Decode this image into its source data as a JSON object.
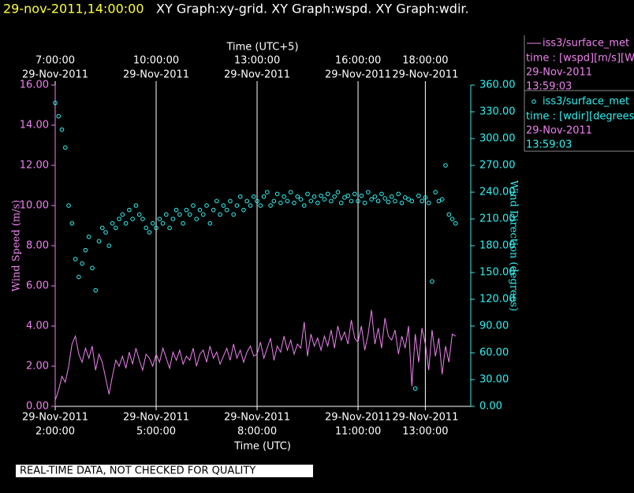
{
  "header": {
    "timestamp": "29-nov-2011,14:00:00",
    "titles": "XY Graph:xy-grid.  XY Graph:wspd.  XY Graph:wdir."
  },
  "footer": "REAL-TIME DATA, NOT CHECKED FOR QUALITY",
  "chart_data": {
    "type": "line",
    "xlabel": "Time (UTC)",
    "x2label": "Time (UTC+5)",
    "ylabel": "Wind Speed (m/s)",
    "y2label": "Wind Direction (degrees)",
    "grid": "x",
    "xlim": [
      2,
      14.35
    ],
    "x2lim": [
      7,
      19.35
    ],
    "ylim": [
      0,
      16
    ],
    "y2lim": [
      0,
      360
    ],
    "xticks": [
      {
        "value": 2,
        "date": "29-Nov-2011",
        "label": "2:00:00"
      },
      {
        "value": 5,
        "date": "29-Nov-2011",
        "label": "5:00:00"
      },
      {
        "value": 8,
        "date": "29-Nov-2011",
        "label": "8:00:00"
      },
      {
        "value": 11,
        "date": "29-Nov-2011",
        "label": "11:00:00"
      },
      {
        "value": 13,
        "date": "29-Nov-2011",
        "label": "13:00:00"
      }
    ],
    "x2ticks": [
      {
        "value": 7,
        "date": "29-Nov-2011",
        "label": "7:00:00"
      },
      {
        "value": 10,
        "date": "29-Nov-2011",
        "label": "10:00:00"
      },
      {
        "value": 13,
        "date": "29-Nov-2011",
        "label": "13:00:00"
      },
      {
        "value": 16,
        "date": "29-Nov-2011",
        "label": "16:00:00"
      },
      {
        "value": 18,
        "date": "29-Nov-2011",
        "label": "18:00:00"
      }
    ],
    "yticks": [
      {
        "value": 0,
        "label": "0.00"
      },
      {
        "value": 2,
        "label": "2.00"
      },
      {
        "value": 4,
        "label": "4.00"
      },
      {
        "value": 6,
        "label": "6.00"
      },
      {
        "value": 8,
        "label": "8.00"
      },
      {
        "value": 10,
        "label": "10.00"
      },
      {
        "value": 12,
        "label": "12.00"
      },
      {
        "value": 14,
        "label": "14.00"
      },
      {
        "value": 16,
        "label": "16.00"
      }
    ],
    "y2ticks": [
      {
        "value": 0,
        "label": "0.00"
      },
      {
        "value": 30,
        "label": "30.00"
      },
      {
        "value": 60,
        "label": "60.00"
      },
      {
        "value": 90,
        "label": "90.00"
      },
      {
        "value": 120,
        "label": "120.00"
      },
      {
        "value": 150,
        "label": "150.00"
      },
      {
        "value": 180,
        "label": "180.00"
      },
      {
        "value": 210,
        "label": "210.00"
      },
      {
        "value": 240,
        "label": "240.00"
      },
      {
        "value": 270,
        "label": "270.00"
      },
      {
        "value": 300,
        "label": "300.00"
      },
      {
        "value": 330,
        "label": "330.00"
      },
      {
        "value": 360,
        "label": "360.00"
      }
    ],
    "x": [
      2,
      2.1,
      2.2,
      2.3,
      2.4,
      2.5,
      2.6,
      2.7,
      2.8,
      2.9,
      3,
      3.1,
      3.2,
      3.3,
      3.4,
      3.5,
      3.6,
      3.7,
      3.8,
      3.9,
      4,
      4.1,
      4.2,
      4.3,
      4.4,
      4.5,
      4.6,
      4.7,
      4.8,
      4.9,
      5,
      5.1,
      5.2,
      5.3,
      5.4,
      5.5,
      5.6,
      5.7,
      5.8,
      5.9,
      6,
      6.1,
      6.2,
      6.3,
      6.4,
      6.5,
      6.6,
      6.7,
      6.8,
      6.9,
      7,
      7.1,
      7.2,
      7.3,
      7.4,
      7.5,
      7.6,
      7.7,
      7.8,
      7.9,
      8,
      8.1,
      8.2,
      8.3,
      8.4,
      8.5,
      8.6,
      8.7,
      8.8,
      8.9,
      9,
      9.1,
      9.2,
      9.3,
      9.4,
      9.5,
      9.6,
      9.7,
      9.8,
      9.9,
      10,
      10.1,
      10.2,
      10.3,
      10.4,
      10.5,
      10.6,
      10.7,
      10.8,
      10.9,
      11,
      11.1,
      11.2,
      11.3,
      11.4,
      11.5,
      11.6,
      11.7,
      11.8,
      11.9,
      12,
      12.1,
      12.2,
      12.3,
      12.4,
      12.5,
      12.6,
      12.7,
      12.8,
      12.9,
      13,
      13.1,
      13.2,
      13.3,
      13.4,
      13.5,
      13.6,
      13.7,
      13.8,
      13.9
    ],
    "series": [
      {
        "name": "iss3/surface_met",
        "type": "line",
        "color": "#ee82ee",
        "legend_lines": [
          "time : [wspd][m/s][Wind",
          "29-Nov-2011",
          "13:59:03"
        ],
        "values": [
          0.3,
          0.8,
          1.5,
          1.2,
          2.0,
          3.1,
          3.5,
          2.6,
          2.2,
          2.9,
          2.4,
          3.0,
          1.8,
          2.6,
          2.2,
          1.4,
          0.6,
          1.5,
          2.3,
          2.0,
          2.5,
          1.9,
          2.7,
          2.1,
          2.9,
          2.3,
          1.8,
          2.6,
          2.4,
          2.0,
          2.6,
          2.2,
          2.9,
          2.4,
          1.9,
          2.7,
          2.3,
          2.8,
          2.1,
          2.5,
          2.3,
          2.9,
          2.0,
          2.6,
          2.8,
          2.2,
          3.0,
          2.4,
          2.7,
          2.1,
          2.5,
          2.9,
          2.3,
          3.1,
          2.4,
          2.8,
          2.2,
          2.7,
          3.0,
          2.5,
          2.6,
          3.2,
          2.4,
          2.9,
          3.4,
          2.3,
          3.0,
          2.7,
          3.5,
          2.8,
          3.3,
          2.6,
          3.1,
          2.9,
          4.2,
          2.5,
          3.6,
          3.0,
          3.4,
          2.8,
          3.5,
          3.0,
          3.8,
          2.9,
          4.0,
          3.3,
          3.7,
          3.1,
          4.3,
          3.4,
          3.2,
          4.0,
          2.8,
          3.6,
          4.8,
          3.1,
          3.9,
          2.9,
          4.4,
          3.5,
          3.3,
          3.8,
          2.6,
          3.5,
          2.9,
          4.0,
          1.0,
          3.6,
          2.2,
          3.9,
          3.1,
          1.8,
          3.8,
          2.5,
          3.4,
          1.6,
          3.0,
          2.2,
          3.6,
          3.5
        ]
      },
      {
        "name": "iss3/surface_met",
        "type": "scatter",
        "color": "#33f0f0",
        "axis": "y2",
        "legend_lines": [
          "time : [wdir][degrees][W",
          "29-Nov-2011",
          "13:59:03"
        ],
        "values": [
          340,
          325,
          310,
          290,
          225,
          205,
          165,
          145,
          160,
          175,
          190,
          155,
          130,
          185,
          200,
          195,
          180,
          205,
          200,
          210,
          215,
          205,
          220,
          210,
          225,
          215,
          210,
          200,
          195,
          205,
          200,
          210,
          205,
          215,
          200,
          210,
          220,
          215,
          205,
          220,
          215,
          225,
          210,
          220,
          215,
          225,
          205,
          220,
          230,
          215,
          225,
          220,
          230,
          215,
          225,
          235,
          220,
          230,
          225,
          235,
          230,
          225,
          235,
          240,
          225,
          230,
          238,
          228,
          235,
          230,
          240,
          228,
          235,
          232,
          225,
          238,
          230,
          235,
          228,
          236,
          232,
          238,
          230,
          235,
          240,
          228,
          234,
          236,
          230,
          238,
          230,
          236,
          228,
          240,
          232,
          235,
          230,
          238,
          233,
          229,
          235,
          230,
          238,
          228,
          234,
          232,
          230,
          20,
          236,
          230,
          234,
          228,
          140,
          240,
          230,
          232,
          270,
          215,
          210,
          205
        ]
      }
    ]
  }
}
